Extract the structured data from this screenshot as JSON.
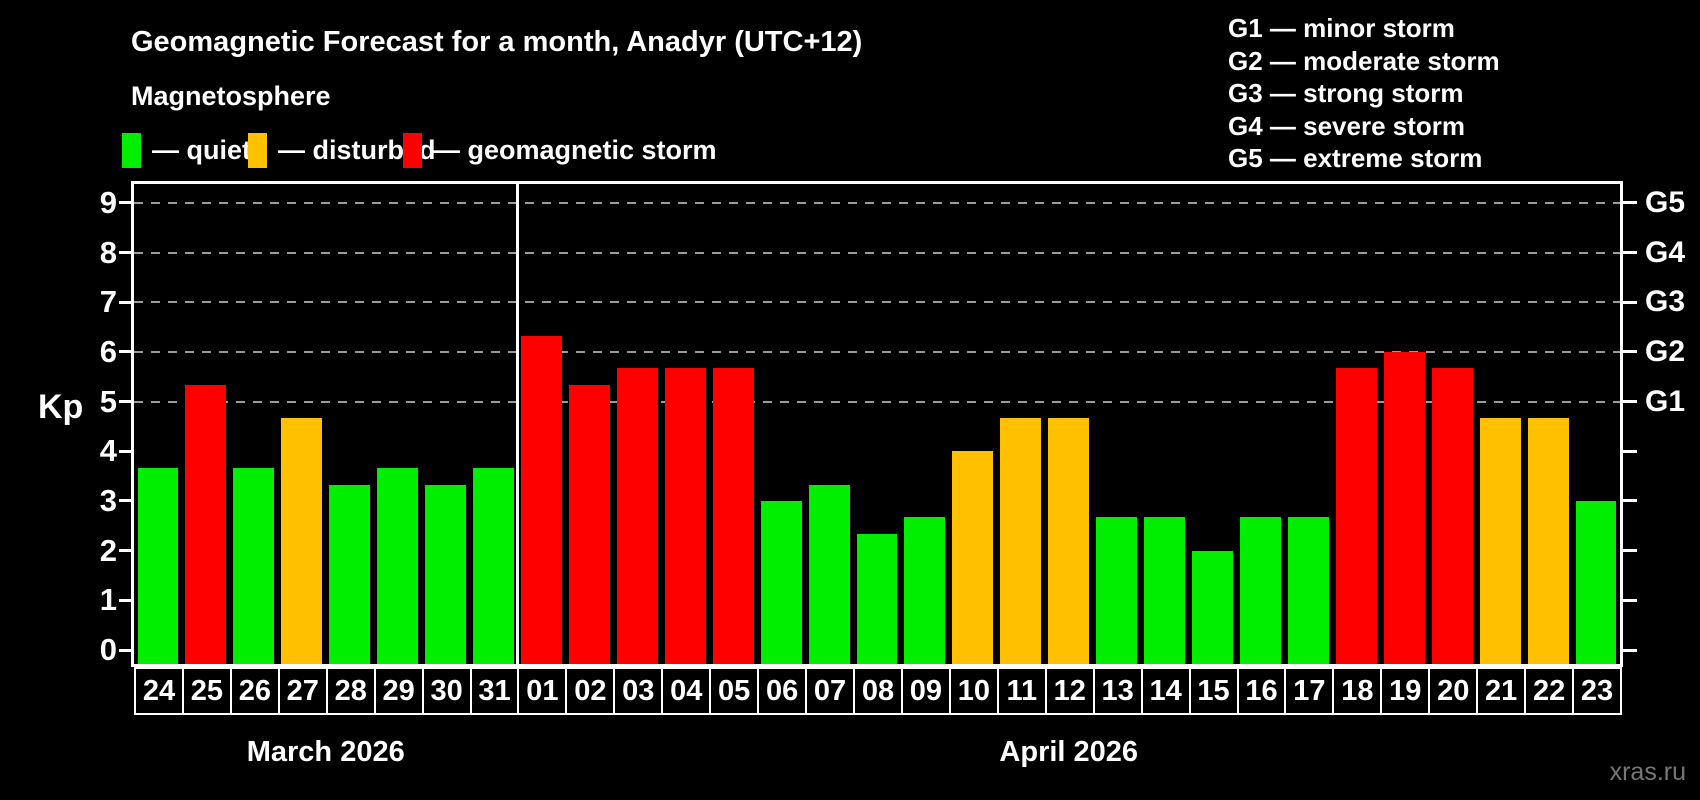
{
  "title": "Geomagnetic Forecast for a month, Anadyr (UTC+12)",
  "subtitle": "Magnetosphere",
  "legend": {
    "items": [
      {
        "key": "quiet",
        "label": "— quiet",
        "color": "#00ee00"
      },
      {
        "key": "disturbed",
        "label": "— disturbed",
        "color": "#ffc000"
      },
      {
        "key": "storm",
        "label": "— geomagnetic storm",
        "color": "#ff0000"
      }
    ]
  },
  "storm_scale_legend": [
    "G1 — minor storm",
    "G2 — moderate storm",
    "G3 — strong storm",
    "G4 — severe storm",
    "G5 — extreme storm"
  ],
  "watermark": "xras.ru",
  "chart_data": {
    "type": "bar",
    "title": "Geomagnetic Forecast for a month, Anadyr (UTC+12)",
    "subtitle": "Magnetosphere",
    "ylabel": "Kp",
    "ylim": [
      0,
      9
    ],
    "yticks": [
      0,
      1,
      2,
      3,
      4,
      5,
      6,
      7,
      8,
      9
    ],
    "gridlines_at_kp": [
      5,
      6,
      7,
      8,
      9
    ],
    "grid_style": "dashed horizontal, gray",
    "right_axis_labels": [
      {
        "label": "G1",
        "kp": 5
      },
      {
        "label": "G2",
        "kp": 6
      },
      {
        "label": "G3",
        "kp": 7
      },
      {
        "label": "G4",
        "kp": 8
      },
      {
        "label": "G5",
        "kp": 9
      }
    ],
    "months": [
      {
        "label": "March 2026",
        "days": 8
      },
      {
        "label": "April 2026",
        "days": 23
      }
    ],
    "categories": [
      "24",
      "25",
      "26",
      "27",
      "28",
      "29",
      "30",
      "31",
      "01",
      "02",
      "03",
      "04",
      "05",
      "06",
      "07",
      "08",
      "09",
      "10",
      "11",
      "12",
      "13",
      "14",
      "15",
      "16",
      "17",
      "18",
      "19",
      "20",
      "21",
      "22",
      "23"
    ],
    "values": [
      3.67,
      5.33,
      3.67,
      4.67,
      3.33,
      3.67,
      3.33,
      3.67,
      6.33,
      5.33,
      5.67,
      5.67,
      5.67,
      3.0,
      3.33,
      2.33,
      2.67,
      4.0,
      4.67,
      4.67,
      2.67,
      2.67,
      2.0,
      2.67,
      2.67,
      5.67,
      6.0,
      5.67,
      4.67,
      4.67,
      3.0
    ],
    "statuses": [
      "quiet",
      "storm",
      "quiet",
      "disturbed",
      "quiet",
      "quiet",
      "quiet",
      "quiet",
      "storm",
      "storm",
      "storm",
      "storm",
      "storm",
      "quiet",
      "quiet",
      "quiet",
      "quiet",
      "disturbed",
      "disturbed",
      "disturbed",
      "quiet",
      "quiet",
      "quiet",
      "quiet",
      "quiet",
      "storm",
      "storm",
      "storm",
      "disturbed",
      "disturbed",
      "quiet"
    ],
    "colors": {
      "quiet": "#00ee00",
      "disturbed": "#ffc000",
      "storm": "#ff0000"
    },
    "legend_position": "top-left",
    "background": "#000000"
  }
}
